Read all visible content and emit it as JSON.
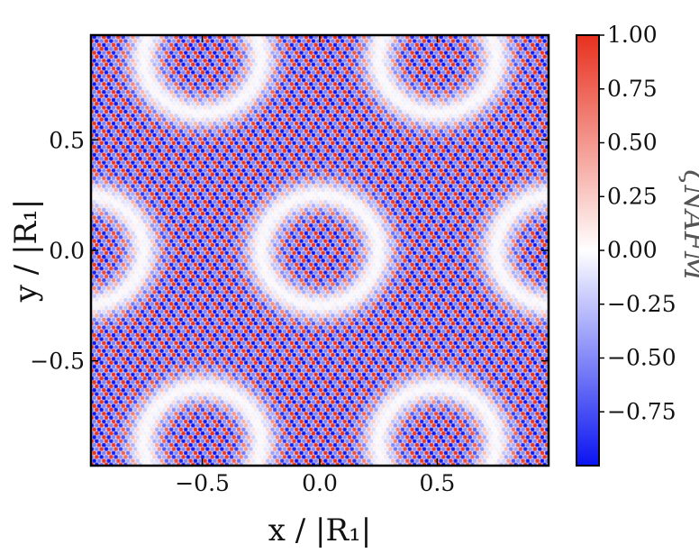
{
  "chart_data": {
    "type": "heatmap",
    "title": "",
    "xlabel": "x / |R₁|",
    "ylabel": "y / |R₁|",
    "xlim": [
      -0.97,
      0.97
    ],
    "ylim": [
      -0.97,
      0.97
    ],
    "xticks": [
      -0.5,
      0.0,
      0.5
    ],
    "xtick_labels": [
      "−0.5",
      "0.0",
      "0.5"
    ],
    "yticks": [
      -0.5,
      0.0,
      0.5
    ],
    "ytick_labels": [
      "−0.5",
      "0.0",
      "0.5"
    ],
    "colorbar": {
      "label": "ζNAFM",
      "range": [
        -1.0,
        1.0
      ],
      "ticks": [
        1.0,
        0.75,
        0.5,
        0.25,
        0.0,
        -0.25,
        -0.5,
        -0.75
      ],
      "tick_labels": [
        "1.00",
        "0.75",
        "0.50",
        "0.25",
        "0.00",
        "−0.25",
        "−0.50",
        "−0.75"
      ],
      "colormap": "bwr",
      "colors": {
        "low": "#0a14f0",
        "mid": "#ffffff",
        "high": "#e8301e"
      }
    },
    "ring_centers": [
      [
        0.0,
        0.0
      ],
      [
        -0.5,
        0.87
      ],
      [
        0.5,
        0.87
      ],
      [
        -0.5,
        -0.87
      ],
      [
        0.5,
        -0.87
      ],
      [
        -1.0,
        0.0
      ],
      [
        1.0,
        0.0
      ]
    ],
    "ring_radius": 0.25,
    "pattern": "triangular-lattice staggered antiferromagnetic order with moiré modulation"
  }
}
